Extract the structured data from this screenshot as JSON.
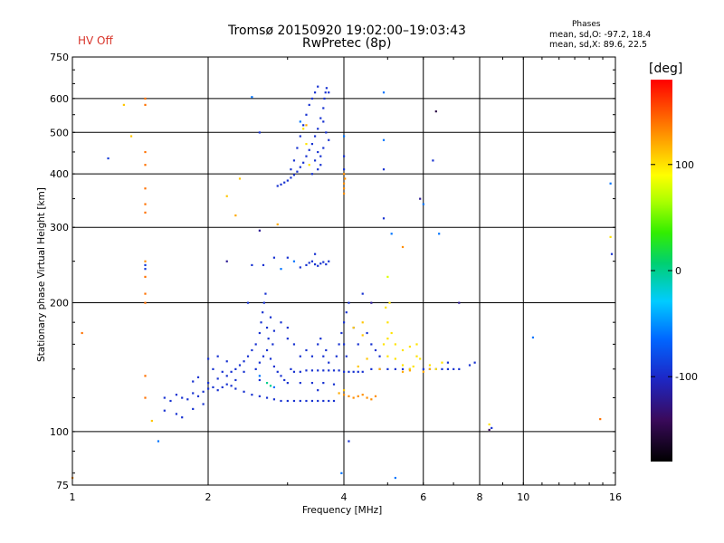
{
  "title": {
    "line1": "Tromsø 20150920 19:02:00–19:03:43",
    "line2": "RwPretec (8p)"
  },
  "status": {
    "hv_label": "HV Off",
    "hv_color": "#d8342a"
  },
  "stats": {
    "heading": "Phases",
    "line1": "mean, sd,O:  -97.2, 18.4",
    "line2": "mean, sd,X:  89.6, 22.5"
  },
  "colors": {
    "background": "#ffffff",
    "axes": "#000000"
  },
  "chart_data": {
    "type": "scatter",
    "xlabel": "Frequency [MHz]",
    "ylabel": "Stationary phase Virtual Height [km]",
    "xscale": "log",
    "yscale": "log",
    "xlim": [
      1,
      16
    ],
    "ylim": [
      75,
      750
    ],
    "xticks": [
      1,
      2,
      4,
      6,
      8,
      10,
      16
    ],
    "yticks": [
      75,
      100,
      200,
      300,
      400,
      500,
      600,
      750
    ],
    "xgrid": [
      2,
      4,
      6,
      8,
      10
    ],
    "ygrid": [
      100,
      200,
      300,
      400,
      500,
      600
    ],
    "grid": true,
    "colorbar": {
      "title": "[deg]",
      "range": [
        -180,
        180
      ],
      "ticks": [
        100,
        0,
        -100
      ]
    },
    "points": [
      [
        1.45,
        120,
        140
      ],
      [
        1.45,
        135,
        140
      ],
      [
        1.45,
        200,
        140
      ],
      [
        1.45,
        210,
        140
      ],
      [
        1.45,
        230,
        140
      ],
      [
        1.45,
        240,
        -90
      ],
      [
        1.45,
        245,
        -90
      ],
      [
        1.45,
        250,
        130
      ],
      [
        1.45,
        325,
        140
      ],
      [
        1.45,
        340,
        140
      ],
      [
        1.45,
        370,
        140
      ],
      [
        1.45,
        420,
        140
      ],
      [
        1.45,
        450,
        140
      ],
      [
        1.45,
        580,
        140
      ],
      [
        1.45,
        600,
        140
      ],
      [
        1.3,
        580,
        110
      ],
      [
        1.35,
        490,
        110
      ],
      [
        1.2,
        435,
        -90
      ],
      [
        1.05,
        170,
        140
      ],
      [
        1.5,
        106,
        110
      ],
      [
        1.6,
        120,
        -95
      ],
      [
        1.65,
        118,
        -95
      ],
      [
        1.7,
        122,
        -95
      ],
      [
        1.75,
        120,
        -95
      ],
      [
        1.8,
        119,
        -95
      ],
      [
        1.85,
        123,
        -95
      ],
      [
        1.9,
        121,
        -95
      ],
      [
        1.95,
        124,
        -95
      ],
      [
        2.0,
        126,
        -95
      ],
      [
        2.05,
        127,
        -95
      ],
      [
        2.1,
        125,
        -95
      ],
      [
        2.15,
        127,
        -95
      ],
      [
        2.2,
        129,
        -95
      ],
      [
        2.25,
        128,
        -95
      ],
      [
        2.3,
        126,
        -95
      ],
      [
        2.4,
        124,
        -95
      ],
      [
        2.5,
        122,
        -95
      ],
      [
        2.6,
        121,
        -95
      ],
      [
        2.7,
        120,
        -95
      ],
      [
        2.8,
        119,
        -95
      ],
      [
        2.9,
        118,
        -95
      ],
      [
        3.0,
        118,
        -95
      ],
      [
        3.1,
        118,
        -95
      ],
      [
        3.2,
        118,
        -95
      ],
      [
        3.3,
        118,
        -95
      ],
      [
        3.4,
        118,
        -95
      ],
      [
        3.5,
        118,
        -95
      ],
      [
        3.6,
        118,
        -95
      ],
      [
        3.7,
        118,
        -95
      ],
      [
        3.8,
        118,
        -95
      ],
      [
        1.6,
        112,
        -95
      ],
      [
        1.7,
        110,
        -95
      ],
      [
        1.75,
        108,
        -95
      ],
      [
        1.85,
        113,
        -95
      ],
      [
        1.95,
        116,
        -95
      ],
      [
        2.0,
        130,
        -95
      ],
      [
        2.1,
        133,
        -95
      ],
      [
        2.2,
        135,
        -95
      ],
      [
        2.25,
        138,
        -95
      ],
      [
        2.3,
        140,
        -95
      ],
      [
        2.35,
        143,
        -95
      ],
      [
        2.4,
        146,
        -95
      ],
      [
        2.45,
        150,
        -95
      ],
      [
        2.5,
        155,
        -95
      ],
      [
        2.55,
        160,
        -95
      ],
      [
        1.85,
        131,
        -95
      ],
      [
        1.9,
        134,
        -95
      ],
      [
        2.05,
        140,
        -95
      ],
      [
        2.15,
        138,
        -95
      ],
      [
        2.3,
        132,
        -95
      ],
      [
        2.0,
        148,
        -95
      ],
      [
        2.1,
        150,
        -95
      ],
      [
        2.2,
        146,
        -95
      ],
      [
        2.4,
        138,
        -95
      ],
      [
        2.6,
        132,
        -95
      ],
      [
        2.6,
        170,
        -95
      ],
      [
        2.62,
        180,
        -95
      ],
      [
        2.64,
        190,
        -95
      ],
      [
        2.66,
        200,
        -95
      ],
      [
        2.68,
        210,
        -95
      ],
      [
        2.7,
        175,
        -95
      ],
      [
        2.72,
        165,
        -95
      ],
      [
        2.75,
        185,
        -95
      ],
      [
        2.78,
        160,
        -95
      ],
      [
        2.8,
        172,
        -95
      ],
      [
        2.55,
        140,
        -95
      ],
      [
        2.6,
        145,
        -95
      ],
      [
        2.65,
        150,
        -95
      ],
      [
        2.7,
        155,
        -95
      ],
      [
        2.75,
        148,
        -95
      ],
      [
        2.8,
        142,
        -95
      ],
      [
        2.85,
        138,
        -95
      ],
      [
        2.9,
        135,
        -95
      ],
      [
        2.95,
        132,
        -95
      ],
      [
        3.0,
        130,
        -95
      ],
      [
        2.7,
        130,
        0
      ],
      [
        2.75,
        128,
        0
      ],
      [
        2.8,
        127,
        -60
      ],
      [
        2.6,
        135,
        -60
      ],
      [
        2.9,
        180,
        -95
      ],
      [
        3.0,
        175,
        -95
      ],
      [
        2.5,
        245,
        -95
      ],
      [
        2.45,
        200,
        -95
      ],
      [
        2.65,
        245,
        -95
      ],
      [
        2.8,
        255,
        -95
      ],
      [
        3.05,
        140,
        -95
      ],
      [
        3.1,
        138,
        -95
      ],
      [
        3.2,
        138,
        -95
      ],
      [
        3.3,
        139,
        -95
      ],
      [
        3.4,
        139,
        -95
      ],
      [
        3.5,
        139,
        -95
      ],
      [
        3.6,
        139,
        -95
      ],
      [
        3.7,
        139,
        -95
      ],
      [
        3.8,
        139,
        -95
      ],
      [
        3.9,
        139,
        -95
      ],
      [
        4.0,
        138,
        -95
      ],
      [
        4.1,
        138,
        -95
      ],
      [
        4.2,
        138,
        -95
      ],
      [
        4.3,
        138,
        -95
      ],
      [
        4.4,
        138,
        -95
      ],
      [
        3.2,
        130,
        -95
      ],
      [
        3.4,
        130,
        -95
      ],
      [
        3.6,
        130,
        -95
      ],
      [
        3.8,
        129,
        -95
      ],
      [
        3.5,
        125,
        -95
      ],
      [
        3.6,
        150,
        -95
      ],
      [
        3.5,
        160,
        -95
      ],
      [
        3.55,
        165,
        -95
      ],
      [
        3.65,
        155,
        -95
      ],
      [
        3.7,
        145,
        -95
      ],
      [
        3.4,
        150,
        -95
      ],
      [
        3.3,
        155,
        -95
      ],
      [
        3.2,
        150,
        -95
      ],
      [
        3.1,
        160,
        -95
      ],
      [
        3.0,
        165,
        -95
      ],
      [
        3.85,
        150,
        -95
      ],
      [
        3.9,
        160,
        -95
      ],
      [
        3.95,
        170,
        -95
      ],
      [
        4.0,
        180,
        -95
      ],
      [
        4.05,
        190,
        -95
      ],
      [
        4.1,
        200,
        -95
      ],
      [
        4.0,
        160,
        -95
      ],
      [
        4.05,
        150,
        -95
      ],
      [
        4.2,
        175,
        -95
      ],
      [
        4.3,
        160,
        -95
      ],
      [
        4.5,
        170,
        -95
      ],
      [
        4.6,
        160,
        -95
      ],
      [
        4.7,
        155,
        -95
      ],
      [
        4.8,
        150,
        -95
      ],
      [
        4.6,
        140,
        -95
      ],
      [
        4.8,
        140,
        -95
      ],
      [
        5.0,
        140,
        -95
      ],
      [
        5.2,
        140,
        -95
      ],
      [
        5.4,
        140,
        -95
      ],
      [
        5.6,
        140,
        -95
      ],
      [
        6.0,
        140,
        -95
      ],
      [
        6.2,
        140,
        -95
      ],
      [
        6.4,
        140,
        -95
      ],
      [
        6.6,
        140,
        -95
      ],
      [
        6.8,
        140,
        -95
      ],
      [
        7.0,
        140,
        -95
      ],
      [
        7.2,
        140,
        -95
      ],
      [
        7.6,
        143,
        -95
      ],
      [
        7.8,
        145,
        -95
      ],
      [
        6.8,
        145,
        -95
      ],
      [
        4.0,
        122,
        130
      ],
      [
        4.1,
        121,
        130
      ],
      [
        4.2,
        120,
        130
      ],
      [
        4.3,
        121,
        130
      ],
      [
        4.4,
        122,
        130
      ],
      [
        4.5,
        120,
        130
      ],
      [
        4.6,
        119,
        130
      ],
      [
        4.7,
        121,
        130
      ],
      [
        3.9,
        123,
        120
      ],
      [
        4.0,
        125,
        110
      ],
      [
        4.9,
        160,
        100
      ],
      [
        5.0,
        165,
        100
      ],
      [
        5.1,
        170,
        100
      ],
      [
        5.0,
        180,
        100
      ],
      [
        4.95,
        195,
        100
      ],
      [
        5.05,
        200,
        100
      ],
      [
        5.2,
        160,
        100
      ],
      [
        5.4,
        155,
        100
      ],
      [
        5.6,
        158,
        100
      ],
      [
        5.8,
        160,
        100
      ],
      [
        5.8,
        150,
        100
      ],
      [
        5.9,
        148,
        100
      ],
      [
        6.6,
        145,
        100
      ],
      [
        6.4,
        140,
        100
      ],
      [
        6.2,
        143,
        100
      ],
      [
        5.0,
        150,
        100
      ],
      [
        5.2,
        148,
        100
      ],
      [
        5.4,
        143,
        100
      ],
      [
        5.6,
        140,
        100
      ],
      [
        5.7,
        142,
        100
      ],
      [
        4.3,
        142,
        110
      ],
      [
        4.5,
        148,
        110
      ],
      [
        4.4,
        168,
        110
      ],
      [
        4.2,
        175,
        110
      ],
      [
        4.4,
        180,
        110
      ],
      [
        4.8,
        140,
        120
      ],
      [
        5.4,
        138,
        120
      ],
      [
        5.6,
        139,
        120
      ],
      [
        6.0,
        138,
        120
      ],
      [
        6.2,
        140,
        120
      ],
      [
        2.85,
        375,
        -95
      ],
      [
        2.9,
        378,
        -95
      ],
      [
        2.95,
        382,
        -95
      ],
      [
        3.0,
        386,
        -95
      ],
      [
        3.05,
        392,
        -95
      ],
      [
        3.1,
        398,
        -95
      ],
      [
        3.15,
        405,
        -95
      ],
      [
        3.2,
        415,
        -95
      ],
      [
        3.25,
        425,
        -95
      ],
      [
        3.3,
        440,
        -95
      ],
      [
        3.35,
        455,
        -95
      ],
      [
        3.4,
        470,
        -95
      ],
      [
        3.45,
        490,
        -95
      ],
      [
        3.5,
        510,
        -95
      ],
      [
        3.55,
        540,
        -95
      ],
      [
        3.6,
        570,
        -95
      ],
      [
        3.62,
        600,
        -95
      ],
      [
        3.64,
        620,
        -95
      ],
      [
        3.66,
        635,
        -95
      ],
      [
        3.7,
        620,
        -95
      ],
      [
        3.5,
        640,
        -95
      ],
      [
        3.45,
        620,
        -95
      ],
      [
        3.4,
        600,
        -95
      ],
      [
        3.35,
        580,
        -95
      ],
      [
        3.3,
        550,
        -95
      ],
      [
        3.25,
        520,
        -95
      ],
      [
        3.2,
        490,
        -95
      ],
      [
        3.15,
        460,
        -95
      ],
      [
        3.1,
        430,
        -95
      ],
      [
        3.05,
        410,
        -95
      ],
      [
        3.6,
        530,
        -95
      ],
      [
        3.65,
        500,
        -95
      ],
      [
        3.7,
        480,
        -95
      ],
      [
        3.6,
        460,
        -95
      ],
      [
        3.5,
        450,
        -95
      ],
      [
        3.55,
        440,
        -95
      ],
      [
        3.45,
        430,
        -95
      ],
      [
        3.55,
        420,
        -95
      ],
      [
        3.5,
        410,
        -95
      ],
      [
        3.4,
        400,
        -95
      ],
      [
        3.35,
        420,
        100
      ],
      [
        3.3,
        470,
        100
      ],
      [
        3.25,
        510,
        100
      ],
      [
        3.3,
        520,
        120
      ],
      [
        3.2,
        530,
        -60
      ],
      [
        3.3,
        245,
        -95
      ],
      [
        3.35,
        248,
        -95
      ],
      [
        3.4,
        250,
        -95
      ],
      [
        3.45,
        246,
        -95
      ],
      [
        3.5,
        244,
        -95
      ],
      [
        3.55,
        247,
        -95
      ],
      [
        3.6,
        249,
        -95
      ],
      [
        3.65,
        246,
        -95
      ],
      [
        3.7,
        250,
        -95
      ],
      [
        3.45,
        260,
        -95
      ],
      [
        3.1,
        250,
        -60
      ],
      [
        2.9,
        240,
        -60
      ],
      [
        3.2,
        242,
        -95
      ],
      [
        3.0,
        255,
        -95
      ],
      [
        4.0,
        490,
        -60
      ],
      [
        4.0,
        360,
        130
      ],
      [
        4.0,
        370,
        130
      ],
      [
        4.0,
        380,
        130
      ],
      [
        4.02,
        390,
        130
      ],
      [
        4.0,
        400,
        130
      ],
      [
        4.0,
        410,
        -95
      ],
      [
        4.0,
        440,
        -95
      ],
      [
        4.1,
        95,
        -95
      ],
      [
        3.95,
        80,
        -60
      ],
      [
        4.9,
        620,
        -60
      ],
      [
        4.9,
        480,
        -60
      ],
      [
        4.9,
        410,
        -95
      ],
      [
        4.9,
        315,
        -95
      ],
      [
        5.1,
        290,
        -60
      ],
      [
        4.4,
        210,
        -95
      ],
      [
        4.6,
        200,
        -120
      ],
      [
        5.0,
        230,
        80
      ],
      [
        5.4,
        270,
        130
      ],
      [
        5.2,
        78,
        -60
      ],
      [
        5.9,
        350,
        -120
      ],
      [
        6.0,
        340,
        -60
      ],
      [
        6.4,
        560,
        -150
      ],
      [
        6.3,
        430,
        -95
      ],
      [
        6.5,
        290,
        -60
      ],
      [
        7.2,
        200,
        -120
      ],
      [
        8.4,
        104,
        100
      ],
      [
        8.4,
        101,
        -140
      ],
      [
        8.5,
        102,
        -95
      ],
      [
        10.5,
        166,
        -60
      ],
      [
        2.5,
        605,
        -60
      ],
      [
        2.6,
        500,
        -95
      ],
      [
        2.35,
        390,
        110
      ],
      [
        2.2,
        355,
        110
      ],
      [
        2.3,
        320,
        120
      ],
      [
        2.6,
        295,
        -120
      ],
      [
        2.2,
        250,
        -120
      ],
      [
        2.85,
        305,
        120
      ],
      [
        15.6,
        380,
        -60
      ],
      [
        15.6,
        285,
        100
      ],
      [
        15.7,
        260,
        -95
      ],
      [
        14.8,
        107,
        140
      ],
      [
        1.0,
        78,
        130
      ],
      [
        1.55,
        95,
        -60
      ]
    ]
  }
}
